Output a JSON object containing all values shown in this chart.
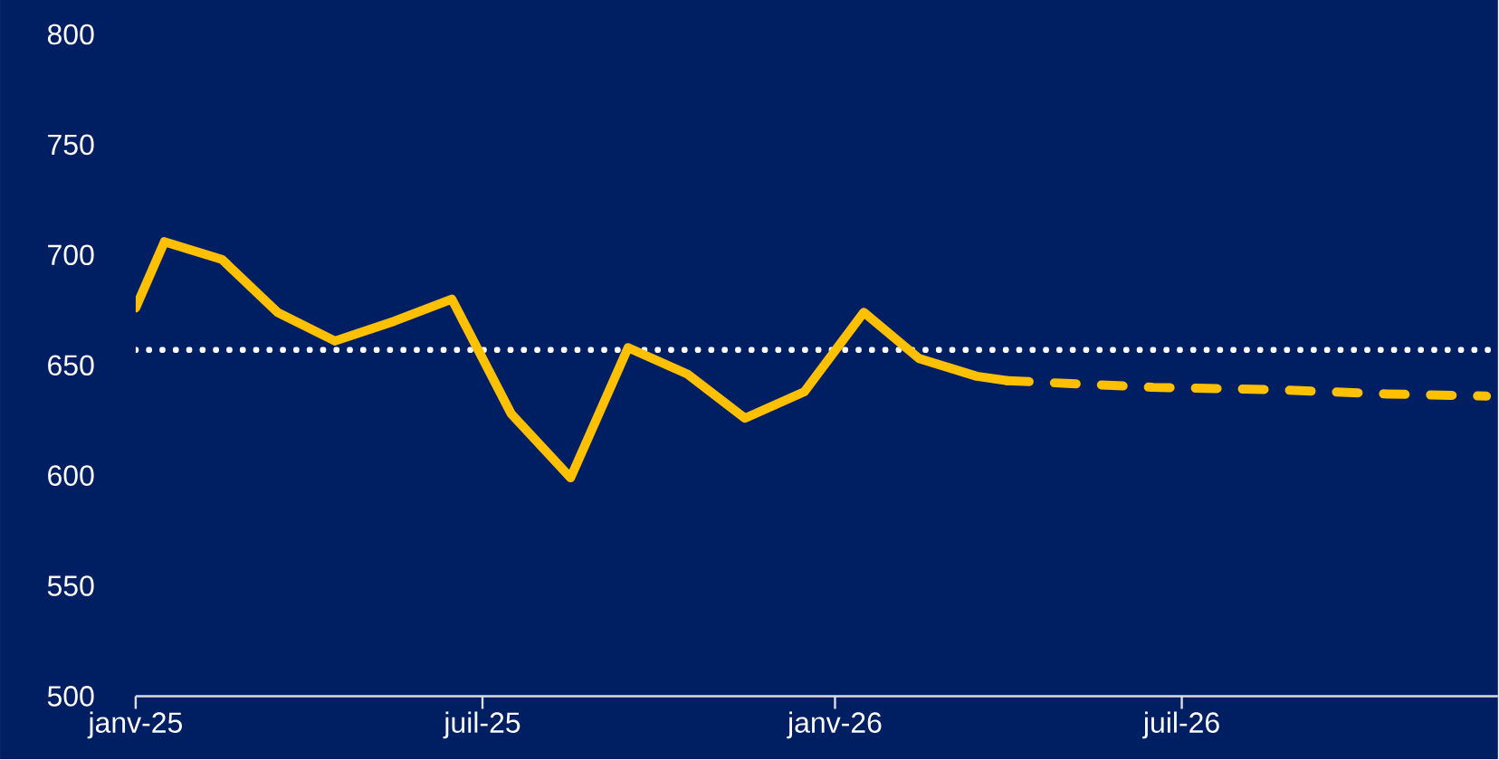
{
  "chart_data": {
    "type": "line",
    "x": [
      "2025-01-01",
      "2025-01-16",
      "2025-02-15",
      "2025-03-16",
      "2025-04-15",
      "2025-05-16",
      "2025-06-15",
      "2025-07-16",
      "2025-08-16",
      "2025-09-15",
      "2025-10-16",
      "2025-11-15",
      "2025-12-16",
      "2026-01-16",
      "2026-02-14",
      "2026-03-16",
      "2026-04-01"
    ],
    "series": [
      {
        "color": "#ffc000",
        "line_style": "solid",
        "values": [
          676,
          706,
          698,
          674,
          661,
          670,
          680,
          628,
          599,
          658,
          646,
          626,
          638,
          674,
          653,
          645,
          643
        ]
      },
      {
        "color": "#ffc000",
        "line_style": "dashed",
        "x": [
          "2026-04-01",
          "2026-06-16",
          "2026-08-16",
          "2026-10-16",
          "2026-12-07"
        ],
        "values": [
          643,
          640,
          639,
          637,
          636
        ]
      }
    ],
    "xlim": [
      "2025-01-01",
      "2026-12-13"
    ],
    "xticks": [
      {
        "value": "2025-01",
        "label": "janv-25"
      },
      {
        "value": "2025-07",
        "label": "juil-25"
      },
      {
        "value": "2026-01",
        "label": "janv-26"
      },
      {
        "value": "2026-07",
        "label": "juil-26"
      }
    ],
    "ylim": [
      500,
      800
    ],
    "yticks": [
      500,
      550,
      600,
      650,
      700,
      750,
      800
    ],
    "ref_lines": [
      {
        "axis": "y",
        "value": 657,
        "color": "#ffffff",
        "line_style": "dotted"
      }
    ],
    "grid": false,
    "legend": false,
    "marker": "none"
  }
}
